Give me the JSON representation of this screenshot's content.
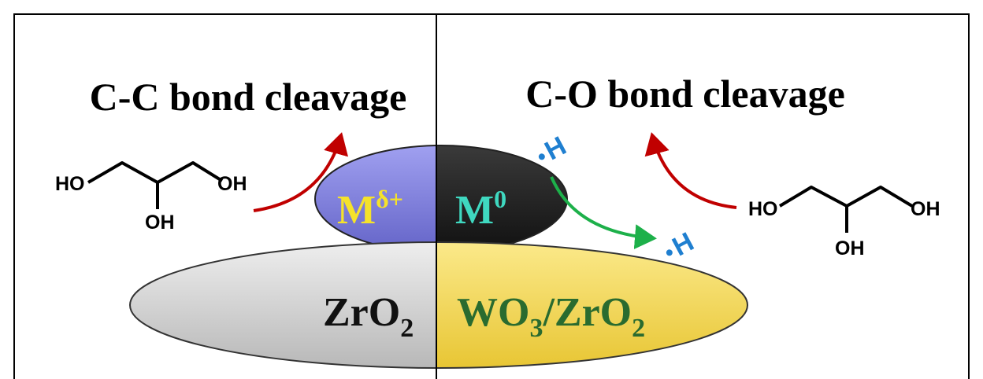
{
  "titles": {
    "left": "C-C bond cleavage",
    "right": "C-O bond cleavage"
  },
  "molecules": [
    {
      "labels": [
        "HO",
        "OH",
        "OH"
      ]
    },
    {
      "labels": [
        "HO",
        "OH",
        "OH"
      ]
    }
  ],
  "metal": {
    "left": {
      "symbol": "M",
      "superscript": "δ+"
    },
    "right": {
      "symbol": "M",
      "superscript": "0"
    }
  },
  "supports": {
    "left": [
      {
        "text": "ZrO",
        "sub": "2"
      }
    ],
    "right": [
      {
        "text": "WO",
        "sub": "3"
      },
      {
        "text": "/ZrO",
        "sub": "2"
      }
    ]
  },
  "hydrogen": [
    "H",
    "H"
  ]
}
